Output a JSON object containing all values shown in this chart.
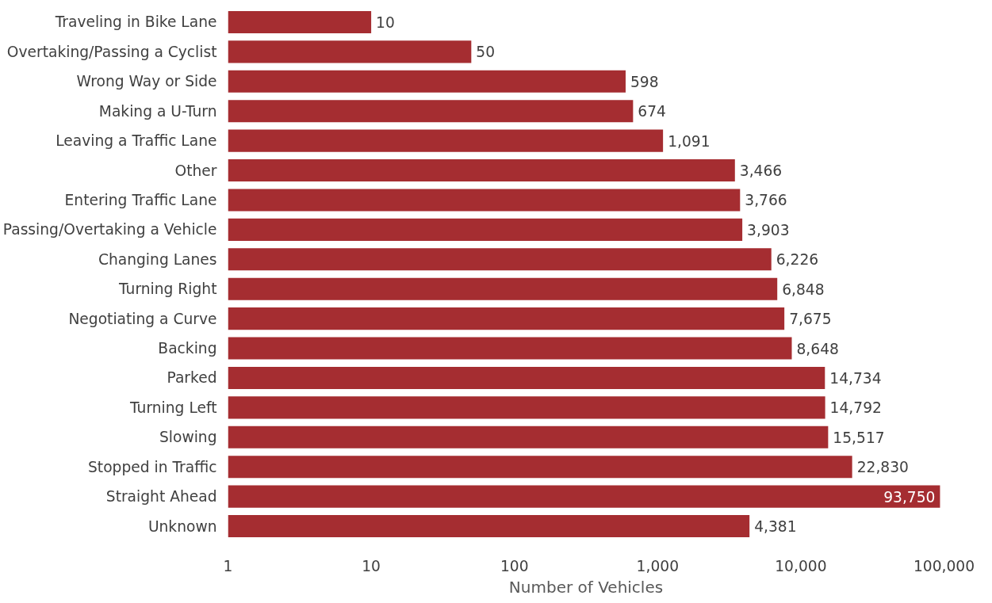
{
  "chart_data": {
    "type": "bar",
    "orientation": "horizontal",
    "log": "x",
    "xlabel": "Number of Vehicles",
    "categories": [
      "Traveling in Bike Lane",
      "Overtaking/Passing a Cyclist",
      "Wrong Way or Side",
      "Making a U-Turn",
      "Leaving a Traffic Lane",
      "Other",
      "Entering Traffic Lane",
      "Passing/Overtaking a Vehicle",
      "Changing Lanes",
      "Turning Right",
      "Negotiating a Curve",
      "Backing",
      "Parked",
      "Turning Left",
      "Slowing",
      "Stopped in Traffic",
      "Straight Ahead",
      "Unknown"
    ],
    "values": [
      10,
      50,
      598,
      674,
      1091,
      3466,
      3766,
      3903,
      6226,
      6848,
      7675,
      8648,
      14734,
      14792,
      15517,
      22830,
      93750,
      4381
    ],
    "color": "#a52d31",
    "grid": false,
    "value_labels": [
      "10",
      "50",
      "598",
      "674",
      "1,091",
      "3,466",
      "3,766",
      "3,903",
      "6,226",
      "6,848",
      "7,675",
      "8,648",
      "14,734",
      "14,792",
      "15,517",
      "22,830",
      "93,750",
      "4,381"
    ],
    "xlim": [
      1,
      100000
    ],
    "xticks": [
      1,
      10,
      100,
      {
        "value": 1000,
        "label": "1,000"
      },
      {
        "value": 10000,
        "label": "10,000"
      },
      {
        "value": 100000,
        "label": "100,000"
      }
    ]
  }
}
